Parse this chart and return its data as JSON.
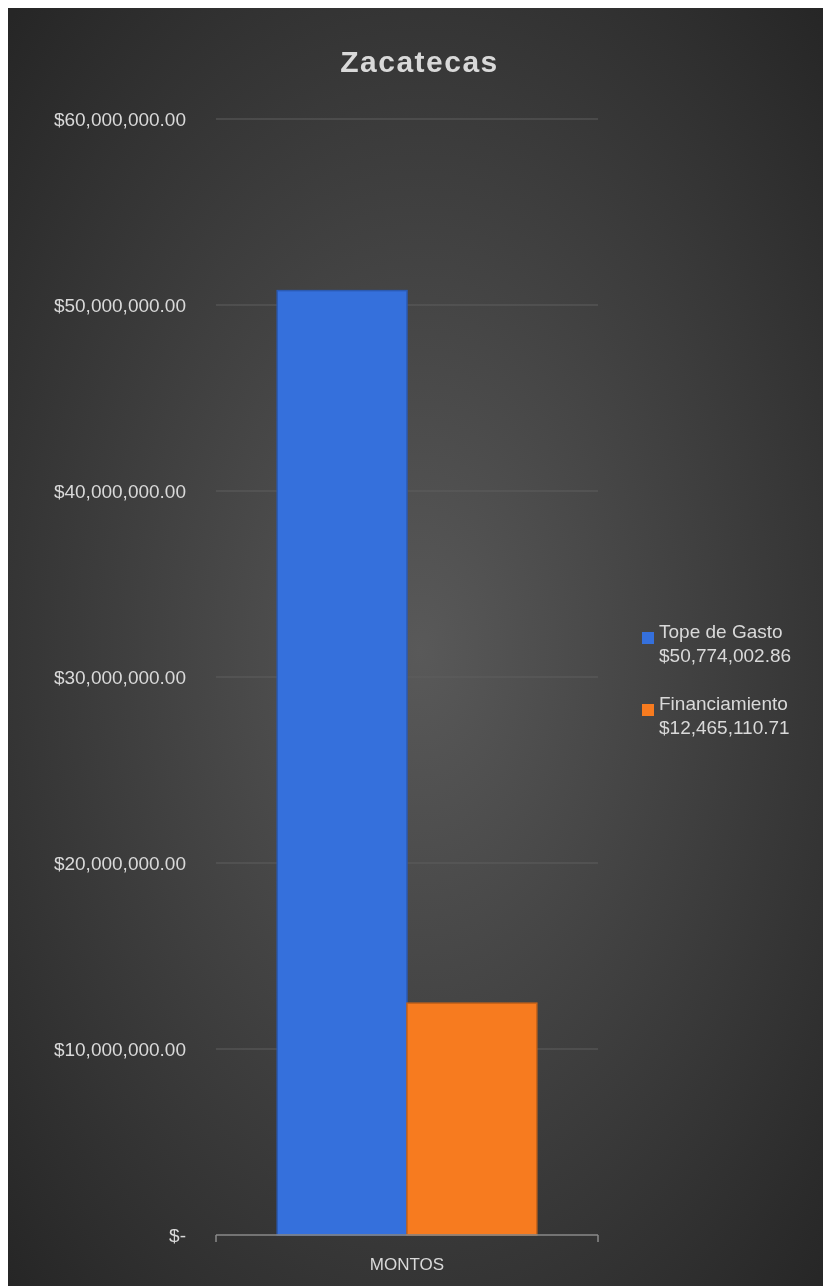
{
  "chart_data": {
    "type": "bar",
    "title": "Zacatecas",
    "categories": [
      "MONTOS"
    ],
    "series": [
      {
        "name": "Tope de Gasto $50,774,002.86",
        "color": "#3570dc",
        "values": [
          50774002.86
        ]
      },
      {
        "name": "Financiamiento $12,465,110.71",
        "color": "#f77b1f",
        "values": [
          12465110.71
        ]
      }
    ],
    "ylim": [
      0,
      60000000
    ],
    "yticks": [
      {
        "value": 0,
        "label": "$-"
      },
      {
        "value": 10000000,
        "label": "$10,000,000.00"
      },
      {
        "value": 20000000,
        "label": "$20,000,000.00"
      },
      {
        "value": 30000000,
        "label": "$30,000,000.00"
      },
      {
        "value": 40000000,
        "label": "$40,000,000.00"
      },
      {
        "value": 50000000,
        "label": "$50,000,000.00"
      },
      {
        "value": 60000000,
        "label": "$60,000,000.00"
      }
    ],
    "grid": "y",
    "legend": "right"
  }
}
